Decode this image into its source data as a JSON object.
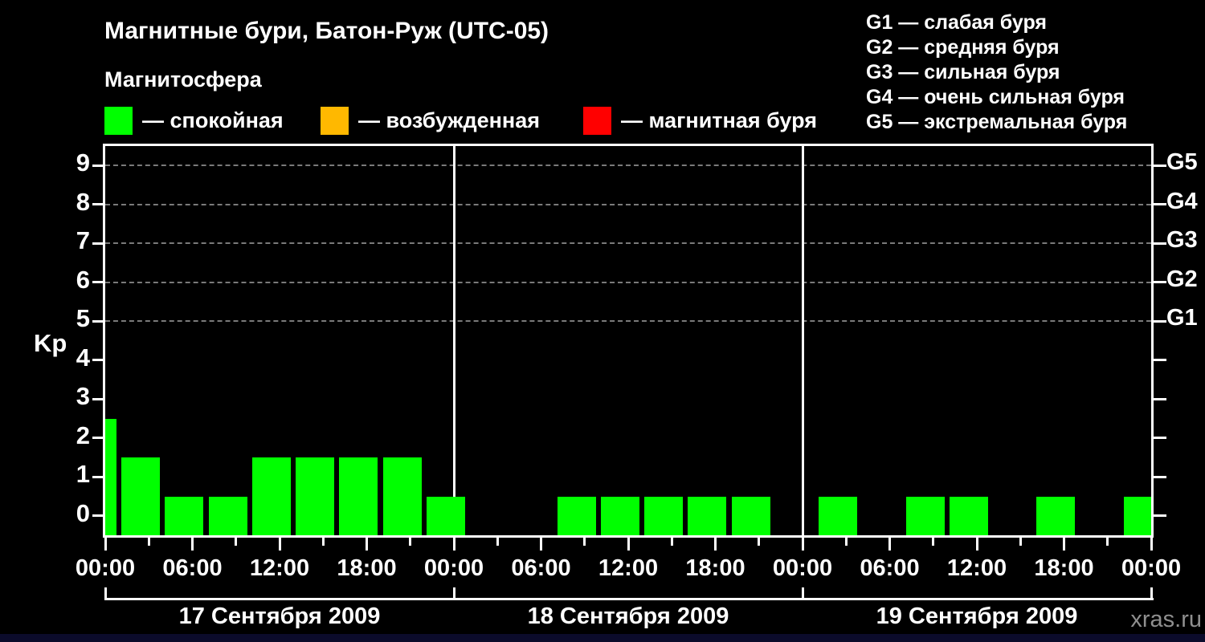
{
  "header": {
    "title": "Магнитные бури, Батон-Руж (UTC-05)",
    "subtitle": "Магнитосфера",
    "legend": [
      {
        "name": "quiet",
        "label": "— спокойная",
        "color": "#00ff00"
      },
      {
        "name": "disturbed",
        "label": "— возбужденная",
        "color": "#ffb800"
      },
      {
        "name": "storm",
        "label": "— магнитная буря",
        "color": "#ff0000"
      }
    ],
    "g_scale_legend": [
      "G1 — слабая буря",
      "G2 — средняя буря",
      "G3 — сильная буря",
      "G4 — очень сильная буря",
      "G5 — экстремальная буря"
    ]
  },
  "watermark": "xras.ru",
  "colors": {
    "background": "#000000",
    "text": "#ffffff",
    "axis": "#ffffff",
    "gridline": "#7a7a7a",
    "watermark": "#8f8f8f"
  },
  "chart_data": {
    "type": "bar",
    "title": "Магнитные бури, Батон-Руж (UTC-05)",
    "ylabel": "Kp",
    "ylim": [
      -0.5,
      9.5
    ],
    "y_ticks": [
      0,
      1,
      2,
      3,
      4,
      5,
      6,
      7,
      8,
      9
    ],
    "gridlines_at": [
      5,
      6,
      7,
      8,
      9
    ],
    "right_axis_labels": {
      "5": "G1",
      "6": "G2",
      "7": "G3",
      "8": "G4",
      "9": "G5"
    },
    "x_time_labels": [
      "00:00",
      "06:00",
      "12:00",
      "18:00"
    ],
    "x_final_label": "00:00",
    "interval_hours": 3,
    "days": [
      {
        "date": "17 Сентября 2009",
        "values": [
          2,
          1,
          1,
          2,
          2,
          2,
          2,
          1
        ]
      },
      {
        "date": "18 Сентября 2009",
        "values": [
          0,
          0,
          1,
          1,
          1,
          1,
          1,
          0
        ]
      },
      {
        "date": "19 Сентября 2009",
        "values": [
          1,
          0,
          1,
          1,
          0,
          1,
          0,
          1
        ]
      }
    ],
    "leading_partial_value": 3,
    "bar_color": "#00ff00",
    "legend_position": "top"
  }
}
